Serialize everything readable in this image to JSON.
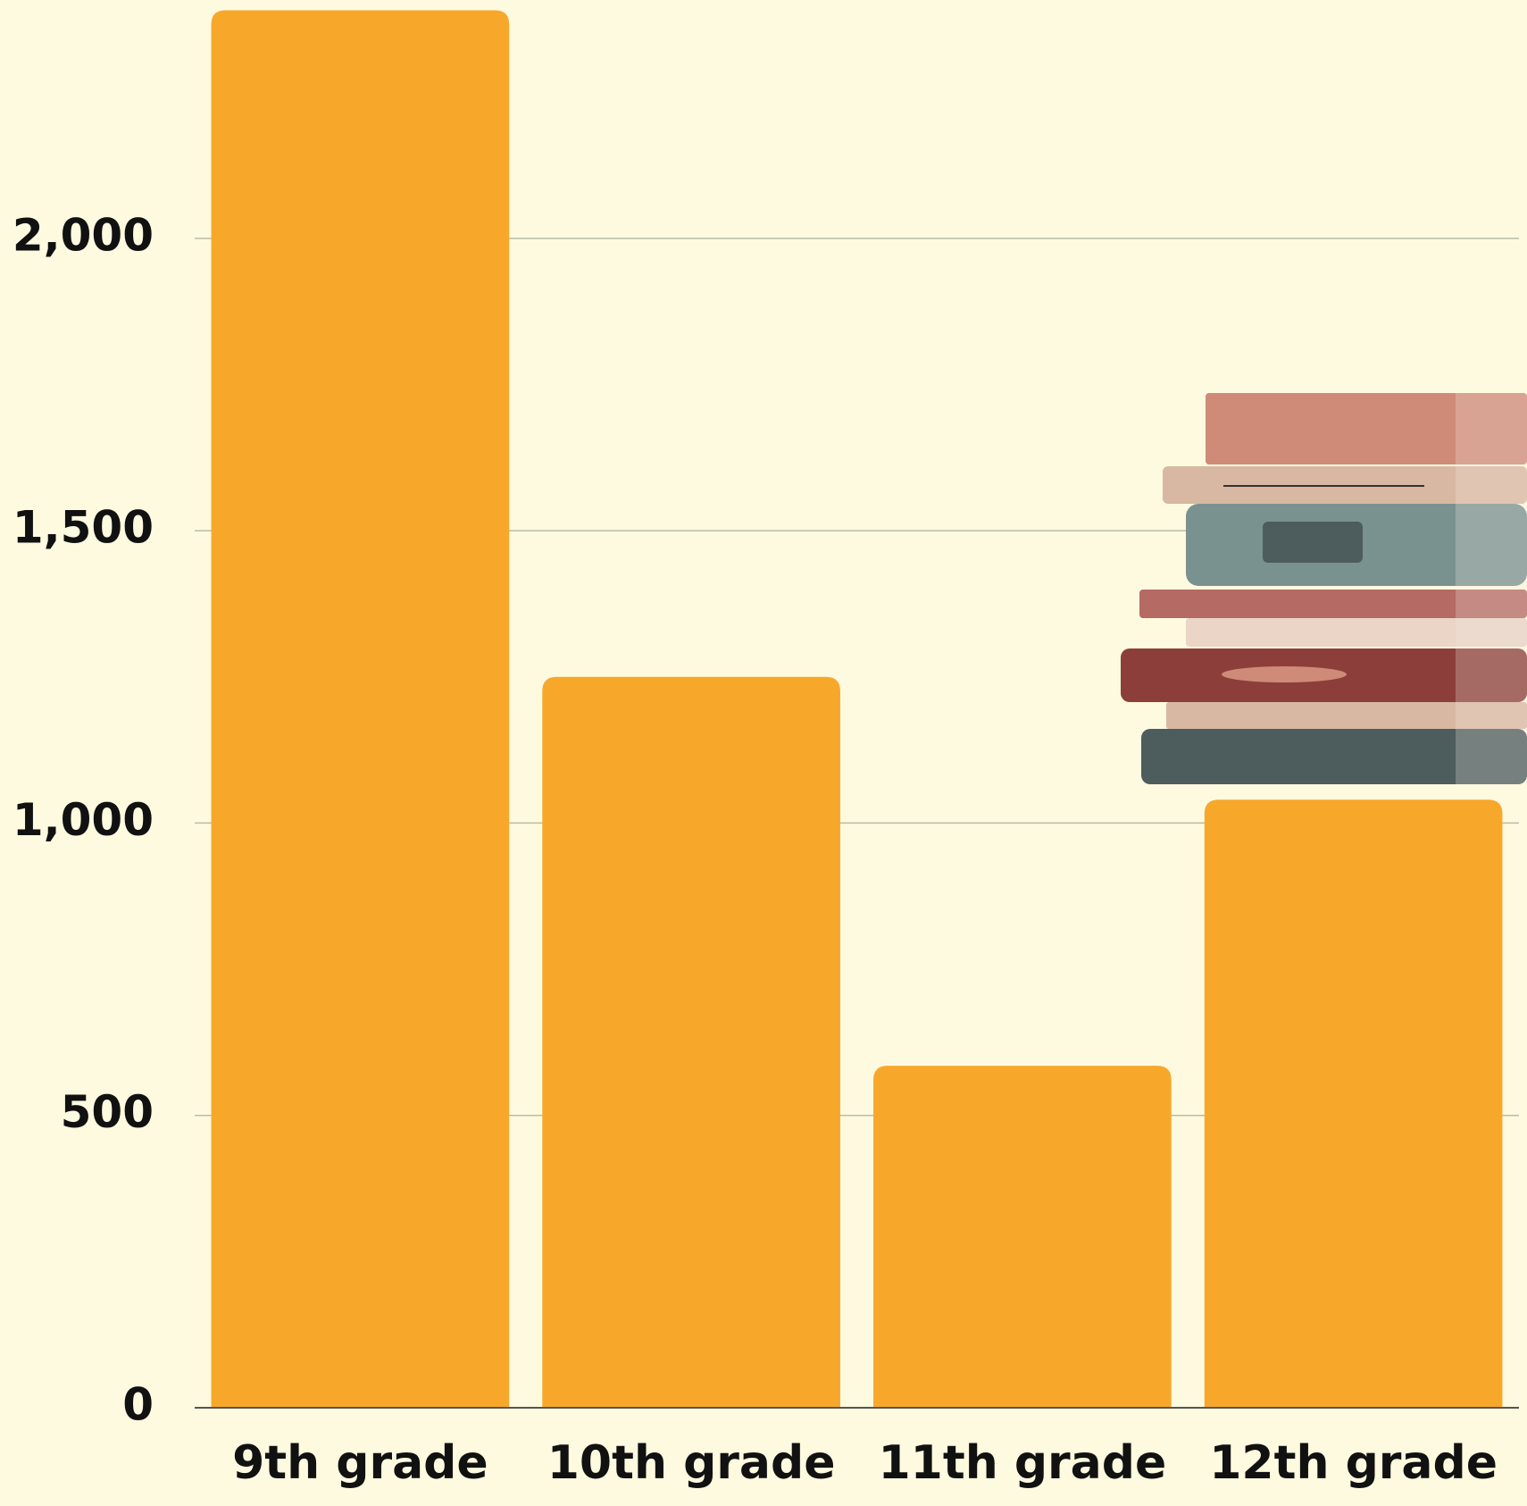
{
  "chart_data": {
    "type": "bar",
    "categories": [
      "9th grade",
      "10th grade",
      "11th grade",
      "12th grade"
    ],
    "values": [
      2390,
      1250,
      585,
      1040
    ],
    "color": "#f7a82b",
    "ylim": [
      0,
      2400
    ],
    "yticks": [
      0,
      500,
      {
        "value": 1000,
        "label": "1,000"
      },
      {
        "value": 1500,
        "label": "1,500"
      },
      {
        "value": 2000,
        "label": "2,000"
      }
    ],
    "grid": true
  }
}
